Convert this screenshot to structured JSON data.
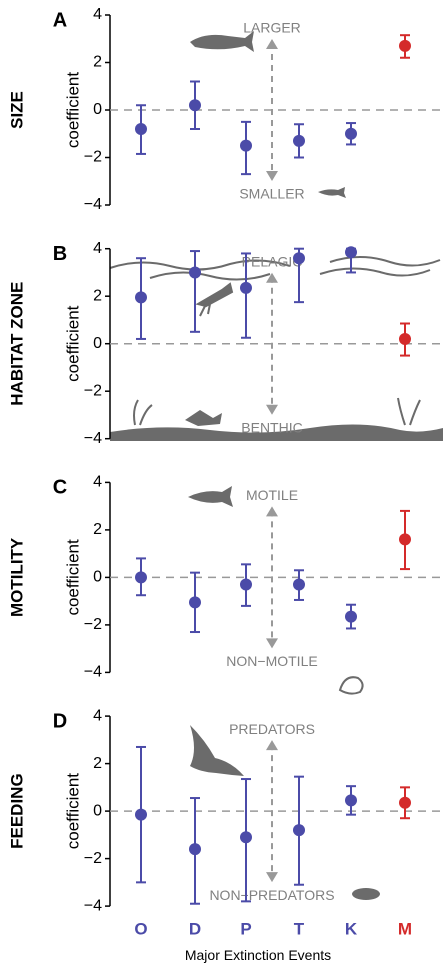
{
  "chart_data": [
    {
      "type": "errorbar",
      "panel": "A",
      "title": "SIZE",
      "y_label": "coefficient",
      "annotation_top": "LARGER",
      "annotation_bottom": "SMALLER",
      "values": [
        -0.8,
        0.2,
        -1.5,
        -1.3,
        -1.0,
        2.7
      ],
      "lower": [
        -1.85,
        -0.8,
        -2.7,
        -2.0,
        -1.45,
        2.2
      ],
      "upper": [
        0.2,
        1.2,
        -0.5,
        -0.6,
        -0.55,
        3.15
      ],
      "colors": [
        "#4b4ba8",
        "#4b4ba8",
        "#4b4ba8",
        "#4b4ba8",
        "#4b4ba8",
        "#d42a2a"
      ],
      "ylim": [
        -4,
        4
      ],
      "yticks": [
        {
          "value": -4,
          "label": "−4"
        },
        {
          "value": -2,
          "label": "−2"
        },
        0,
        2,
        4
      ]
    },
    {
      "type": "errorbar",
      "panel": "B",
      "title": "HABITAT ZONE",
      "y_label": "coefficient",
      "annotation_top": "PELAGIC",
      "annotation_bottom": "BENTHIC",
      "values": [
        1.95,
        3.0,
        2.35,
        3.6,
        3.85,
        0.2
      ],
      "lower": [
        0.2,
        0.5,
        0.25,
        1.75,
        3.0,
        -0.5
      ],
      "upper": [
        3.6,
        3.9,
        3.8,
        4.0,
        4.0,
        0.85
      ],
      "colors": [
        "#4b4ba8",
        "#4b4ba8",
        "#4b4ba8",
        "#4b4ba8",
        "#4b4ba8",
        "#d42a2a"
      ],
      "ylim": [
        -4,
        4
      ],
      "yticks": [
        {
          "value": -4,
          "label": "−4"
        },
        {
          "value": -2,
          "label": "−2"
        },
        0,
        2,
        4
      ]
    },
    {
      "type": "errorbar",
      "panel": "C",
      "title": "MOTILITY",
      "y_label": "coefficient",
      "annotation_top": "MOTILE",
      "annotation_bottom": "NON−MOTILE",
      "values": [
        0.0,
        -1.05,
        -0.3,
        -0.3,
        -1.65,
        1.6
      ],
      "lower": [
        -0.75,
        -2.3,
        -1.2,
        -0.95,
        -2.15,
        0.35
      ],
      "upper": [
        0.8,
        0.2,
        0.55,
        0.3,
        -1.15,
        2.8
      ],
      "colors": [
        "#4b4ba8",
        "#4b4ba8",
        "#4b4ba8",
        "#4b4ba8",
        "#4b4ba8",
        "#d42a2a"
      ],
      "ylim": [
        -4,
        4
      ],
      "yticks": [
        {
          "value": -4,
          "label": "−4"
        },
        {
          "value": -2,
          "label": "−2"
        },
        0,
        2,
        4
      ]
    },
    {
      "type": "errorbar",
      "panel": "D",
      "title": "FEEDING",
      "y_label": "coefficient",
      "annotation_top": "PREDATORS",
      "annotation_bottom": "NON−PREDATORS",
      "values": [
        -0.15,
        -1.6,
        -1.1,
        -0.8,
        0.45,
        0.35
      ],
      "lower": [
        -3.0,
        -3.9,
        -3.8,
        -3.1,
        -0.15,
        -0.3
      ],
      "upper": [
        2.7,
        0.55,
        1.35,
        1.45,
        1.05,
        1.0
      ],
      "colors": [
        "#4b4ba8",
        "#4b4ba8",
        "#4b4ba8",
        "#4b4ba8",
        "#4b4ba8",
        "#d42a2a"
      ],
      "ylim": [
        -4,
        4
      ],
      "yticks": [
        {
          "value": -4,
          "label": "−4"
        },
        {
          "value": -2,
          "label": "−2"
        },
        0,
        2,
        4
      ],
      "categories": [
        "O",
        "D",
        "P",
        "T",
        "K",
        "M"
      ],
      "x_label": "Major Extinction Events"
    }
  ]
}
